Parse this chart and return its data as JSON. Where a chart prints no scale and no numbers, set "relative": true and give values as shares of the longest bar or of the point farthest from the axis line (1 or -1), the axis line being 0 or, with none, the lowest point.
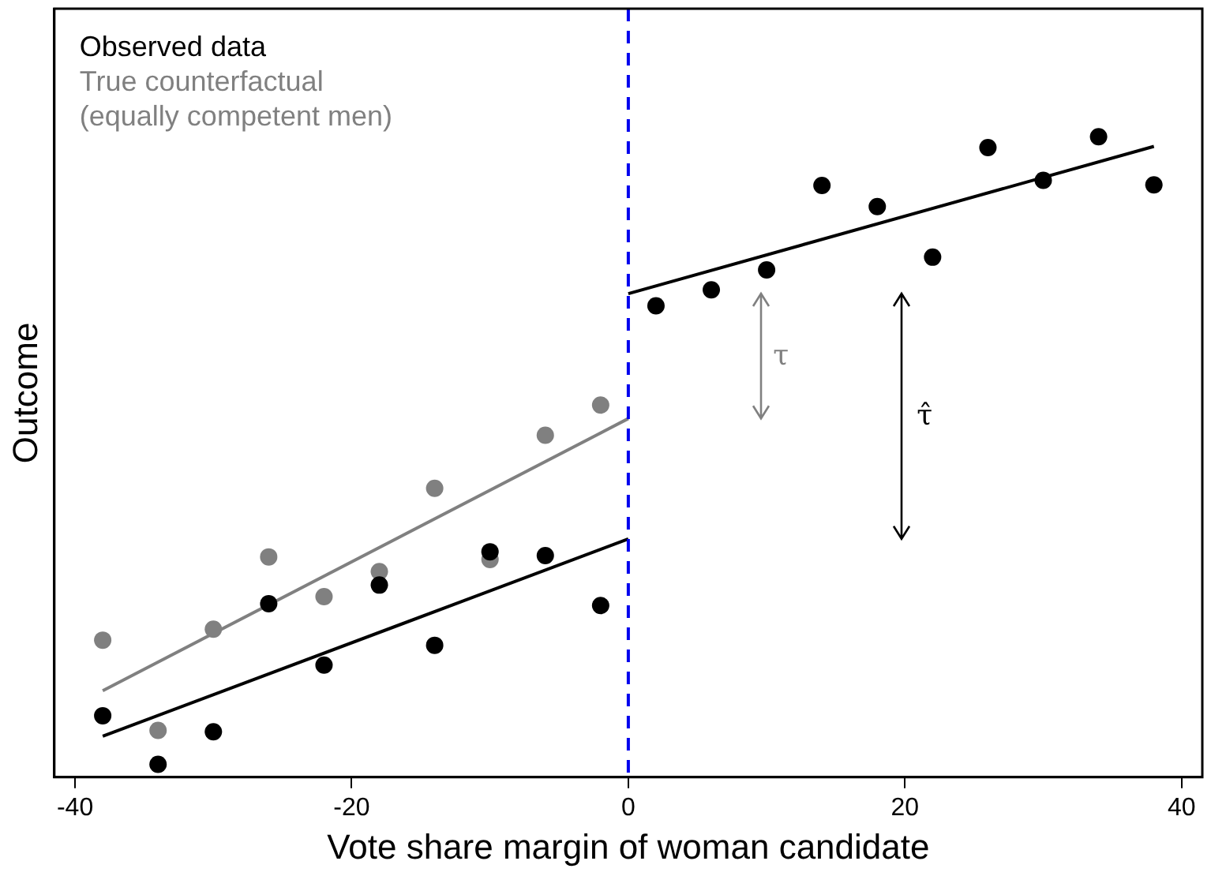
{
  "chart_data": {
    "type": "scatter",
    "xlabel": "Vote share margin of woman candidate",
    "ylabel": "Outcome",
    "relative": true,
    "xlim": [
      -41.5,
      41.5
    ],
    "xticks": [
      -40,
      -20,
      0,
      20,
      40
    ],
    "grid": false,
    "legend": "top left",
    "marker": "circle",
    "series": [
      {
        "name": "Observed data",
        "color": "#000000",
        "x": [
          -38,
          -34,
          -30,
          -26,
          -22,
          -18,
          -14,
          -10,
          -6,
          -2,
          2,
          6,
          10,
          14,
          18,
          22,
          26,
          30,
          34,
          38
        ],
        "values": [
          0.096,
          0.02,
          0.071,
          0.271,
          0.175,
          0.3,
          0.206,
          0.352,
          0.346,
          0.268,
          0.736,
          0.761,
          0.792,
          0.924,
          0.891,
          0.812,
          0.983,
          0.932,
          1.0,
          0.925
        ]
      },
      {
        "name": "True counterfactual\n(equally competent men)",
        "color": "#808080",
        "x": [
          -38,
          -34,
          -30,
          -26,
          -22,
          -18,
          -14,
          -10,
          -6,
          -2
        ],
        "values": [
          0.214,
          0.073,
          0.231,
          0.344,
          0.282,
          0.321,
          0.451,
          0.34,
          0.534,
          0.581
        ]
      },
      {
        "type": "line",
        "marker": "none",
        "color": "#808080",
        "x": [
          -38,
          0
        ],
        "values": [
          0.135,
          0.56
        ]
      },
      {
        "type": "line",
        "marker": "none",
        "color": "#000000",
        "x": [
          -38,
          0
        ],
        "values": [
          0.064,
          0.372
        ]
      },
      {
        "type": "line",
        "marker": "none",
        "color": "#000000",
        "x": [
          0,
          38
        ],
        "values": [
          0.755,
          0.985
        ]
      }
    ],
    "ref_lines": [
      {
        "axis": "x",
        "value": 0,
        "color": "#0000ee",
        "line_style": "dashed"
      }
    ],
    "annotations": [
      "τ",
      "τ̂"
    ]
  }
}
